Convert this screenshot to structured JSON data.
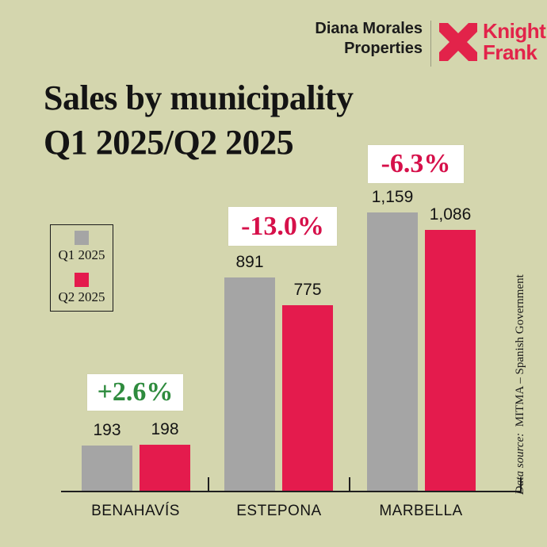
{
  "page": {
    "background": "#d4d6ae"
  },
  "header": {
    "agency_line1": "Diana Morales",
    "agency_line2": "Properties",
    "brand_line1": "Knight",
    "brand_line2": "Frank",
    "brand_red": "#e2234a"
  },
  "title": {
    "line1": "Sales by municipality",
    "line2": "Q1 2025/Q2 2025"
  },
  "legend": {
    "items": [
      {
        "label": "Q1 2025",
        "color": "#a5a5a5"
      },
      {
        "label": "Q2 2025",
        "color": "#e41b4d"
      }
    ]
  },
  "chart_data": {
    "type": "bar",
    "categories": [
      "BENAHAVÍS",
      "ESTEPONA",
      "MARBELLA"
    ],
    "series": [
      {
        "name": "Q1 2025",
        "color": "#a5a5a5",
        "values": [
          193,
          891,
          1159
        ]
      },
      {
        "name": "Q2 2025",
        "color": "#e41b4d",
        "values": [
          198,
          775,
          1086
        ]
      }
    ],
    "display_values": [
      [
        "193",
        "891",
        "1,159"
      ],
      [
        "198",
        "775",
        "1,086"
      ]
    ],
    "change_badges": [
      {
        "label": "+2.6%",
        "color": "#2e8b3e"
      },
      {
        "label": "-13.0%",
        "color": "#d6104a"
      },
      {
        "label": "-6.3%",
        "color": "#d6104a"
      }
    ],
    "title": "Sales by municipality Q1 2025/Q2 2025",
    "xlabel": "",
    "ylabel": "",
    "ylim": [
      0,
      1200
    ],
    "grid": false,
    "legend_position": "upper-left"
  },
  "source_note": {
    "prefix": "Data source:",
    "text": "MITMA – Spanish Government"
  }
}
